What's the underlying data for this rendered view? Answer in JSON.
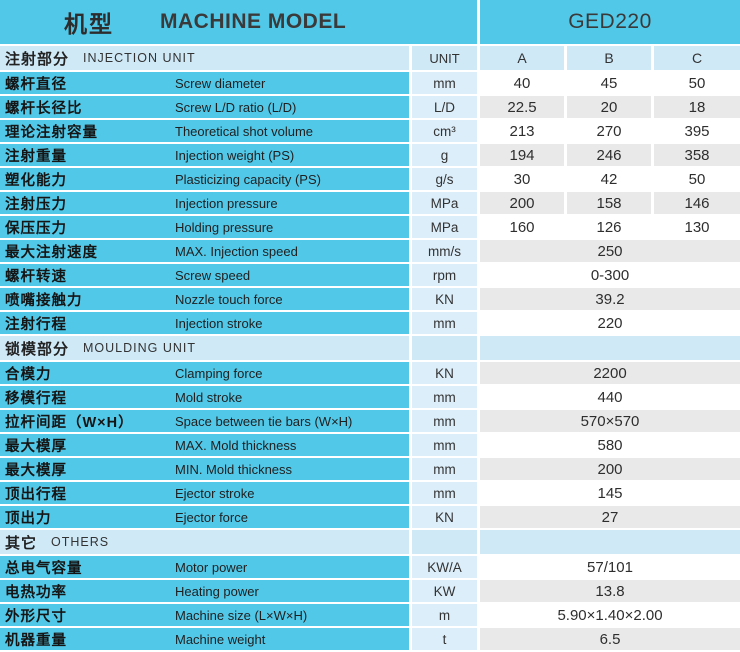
{
  "header": {
    "title_cn": "机型",
    "title_en": "MACHINE MODEL",
    "model": "GED220"
  },
  "columns": {
    "unit_label": "UNIT",
    "variants": [
      "A",
      "B",
      "C"
    ]
  },
  "colors": {
    "cyan_label": "#52C8E8",
    "section_blue": "#CFE9F7",
    "unit_blue": "#DCEEFA",
    "row_gray": "#E9E9E9",
    "row_white": "#FFFFFF",
    "text_dark": "#2e2e2e"
  },
  "sections": [
    {
      "name_cn": "注射部分",
      "name_en": "INJECTION UNIT",
      "show_column_headers": true,
      "rows": [
        {
          "cn": "螺杆直径",
          "en": "Screw diameter",
          "unit": "mm",
          "values": [
            "40",
            "45",
            "50"
          ]
        },
        {
          "cn": "螺杆长径比",
          "en": "Screw L/D ratio (L/D)",
          "unit": "L/D",
          "values": [
            "22.5",
            "20",
            "18"
          ]
        },
        {
          "cn": "理论注射容量",
          "en": "Theoretical shot volume",
          "unit": "cm³",
          "values": [
            "213",
            "270",
            "395"
          ]
        },
        {
          "cn": "注射重量",
          "en": "Injection weight (PS)",
          "unit": "g",
          "values": [
            "194",
            "246",
            "358"
          ]
        },
        {
          "cn": "塑化能力",
          "en": "Plasticizing capacity (PS)",
          "unit": "g/s",
          "values": [
            "30",
            "42",
            "50"
          ]
        },
        {
          "cn": "注射压力",
          "en": "Injection pressure",
          "unit": "MPa",
          "values": [
            "200",
            "158",
            "146"
          ]
        },
        {
          "cn": "保压压力",
          "en": "Holding pressure",
          "unit": "MPa",
          "values": [
            "160",
            "126",
            "130"
          ]
        },
        {
          "cn": "最大注射速度",
          "en": "MAX. Injection speed",
          "unit": "mm/s",
          "values": [
            "250"
          ]
        },
        {
          "cn": "螺杆转速",
          "en": "Screw speed",
          "unit": "rpm",
          "values": [
            "0-300"
          ]
        },
        {
          "cn": "喷嘴接触力",
          "en": "Nozzle touch force",
          "unit": "KN",
          "values": [
            "39.2"
          ]
        },
        {
          "cn": "注射行程",
          "en": "Injection stroke",
          "unit": "mm",
          "values": [
            "220"
          ]
        }
      ]
    },
    {
      "name_cn": "锁模部分",
      "name_en": "MOULDING UNIT",
      "show_column_headers": false,
      "rows": [
        {
          "cn": "合模力",
          "en": "Clamping force",
          "unit": "KN",
          "values": [
            "2200"
          ]
        },
        {
          "cn": "移模行程",
          "en": "Mold stroke",
          "unit": "mm",
          "values": [
            "440"
          ]
        },
        {
          "cn": "拉杆间距（W×H）",
          "en": "Space between tie bars (W×H)",
          "unit": "mm",
          "values": [
            "570×570"
          ]
        },
        {
          "cn": "最大模厚",
          "en": "MAX. Mold thickness",
          "unit": "mm",
          "values": [
            "580"
          ]
        },
        {
          "cn": "最大模厚",
          "en": "MIN. Mold thickness",
          "unit": "mm",
          "values": [
            "200"
          ]
        },
        {
          "cn": "顶出行程",
          "en": "Ejector stroke",
          "unit": "mm",
          "values": [
            "145"
          ]
        },
        {
          "cn": "顶出力",
          "en": "Ejector force",
          "unit": "KN",
          "values": [
            "27"
          ]
        }
      ]
    },
    {
      "name_cn": "其它",
      "name_en": "OTHERS",
      "show_column_headers": false,
      "rows": [
        {
          "cn": "总电气容量",
          "en": "Motor power",
          "unit": "KW/A",
          "values": [
            "57/101"
          ]
        },
        {
          "cn": "电热功率",
          "en": "Heating power",
          "unit": "KW",
          "values": [
            "13.8"
          ]
        },
        {
          "cn": "外形尺寸",
          "en": "Machine size (L×W×H)",
          "unit": "m",
          "values": [
            "5.90×1.40×2.00"
          ]
        },
        {
          "cn": "机器重量",
          "en": "Machine weight",
          "unit": "t",
          "values": [
            "6.5"
          ]
        }
      ]
    }
  ]
}
